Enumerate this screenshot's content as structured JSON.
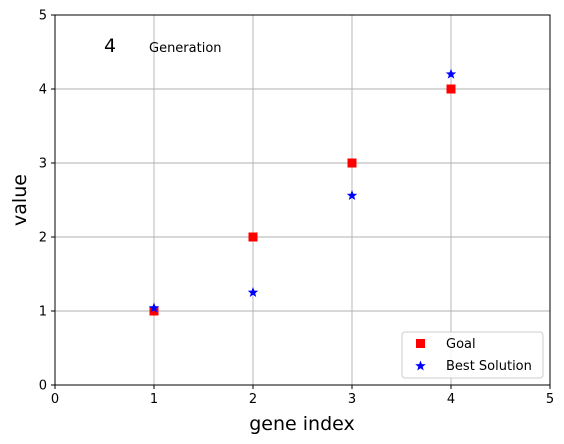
{
  "chart_data": {
    "type": "scatter",
    "xlabel": "gene index",
    "ylabel": "value",
    "xlim": [
      0,
      5
    ],
    "ylim": [
      0,
      5
    ],
    "xticks": [
      "0",
      "1",
      "2",
      "3",
      "4",
      "5"
    ],
    "yticks": [
      "0",
      "1",
      "2",
      "3",
      "4",
      "5"
    ],
    "grid": true,
    "legend_position": "lower-right",
    "annotations": [
      {
        "text": "4",
        "x": 0.5,
        "y": 4.5,
        "size": "large"
      },
      {
        "text": "Generation",
        "x": 0.95,
        "y": 4.5,
        "size": "small"
      }
    ],
    "series": [
      {
        "name": "Goal",
        "marker": "square",
        "color": "#ff0000",
        "x": [
          1,
          2,
          3,
          4
        ],
        "y": [
          1,
          2,
          3,
          4
        ]
      },
      {
        "name": "Best Solution",
        "marker": "star",
        "color": "#0000ff",
        "x": [
          1,
          2,
          3,
          4
        ],
        "y": [
          1.04,
          1.25,
          2.56,
          4.2
        ]
      }
    ]
  }
}
